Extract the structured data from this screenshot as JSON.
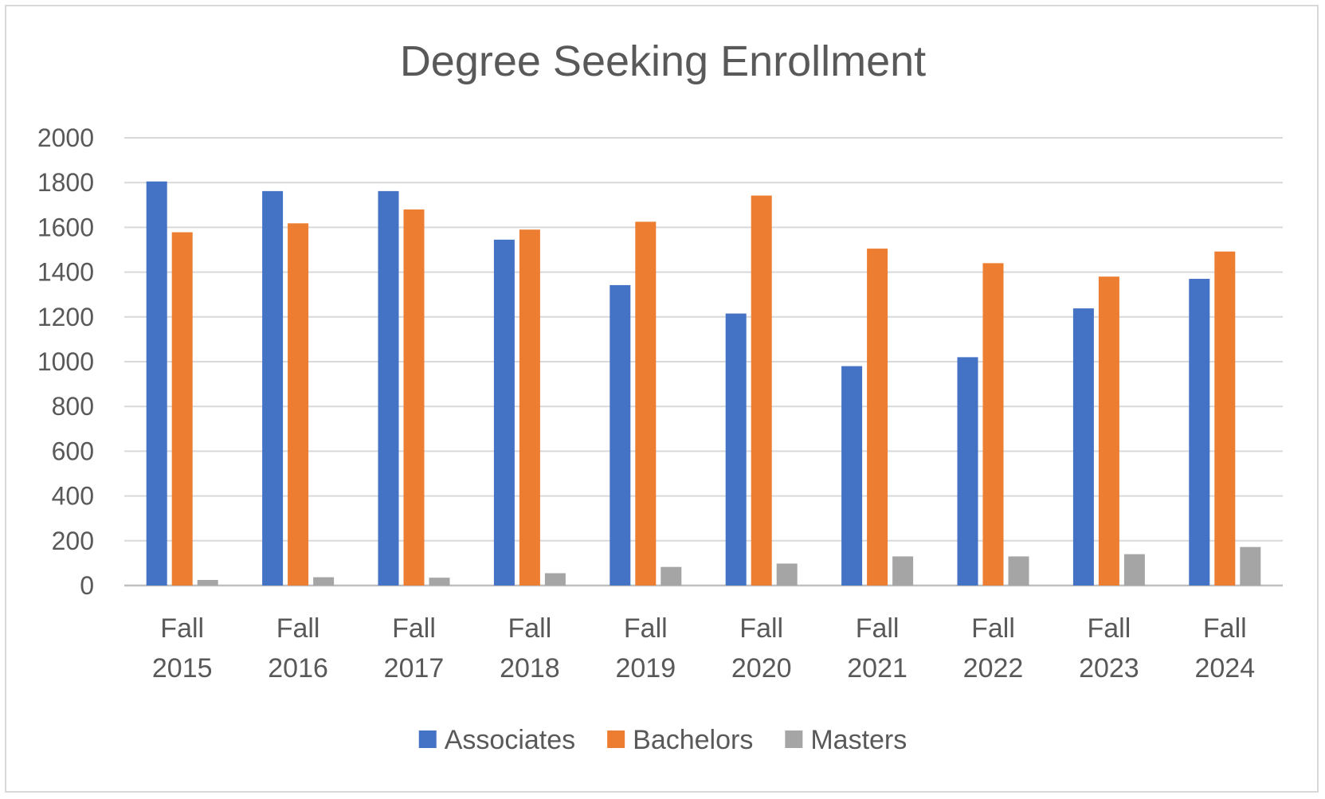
{
  "chart_data": {
    "type": "bar",
    "title": "Degree Seeking Enrollment",
    "xlabel": "",
    "ylabel": "",
    "ylim": [
      0,
      2000
    ],
    "ytick_step": 200,
    "grid": true,
    "legend_position": "bottom",
    "categories": [
      [
        "Fall",
        "2015"
      ],
      [
        "Fall",
        "2016"
      ],
      [
        "Fall",
        "2017"
      ],
      [
        "Fall",
        "2018"
      ],
      [
        "Fall",
        "2019"
      ],
      [
        "Fall",
        "2020"
      ],
      [
        "Fall",
        "2021"
      ],
      [
        "Fall",
        "2022"
      ],
      [
        "Fall",
        "2023"
      ],
      [
        "Fall",
        "2024"
      ]
    ],
    "series": [
      {
        "name": "Associates",
        "color": "#4472c4",
        "values": [
          1805,
          1762,
          1762,
          1545,
          1342,
          1215,
          980,
          1020,
          1238,
          1370
        ]
      },
      {
        "name": "Bachelors",
        "color": "#ed7d31",
        "values": [
          1578,
          1618,
          1680,
          1590,
          1625,
          1742,
          1505,
          1440,
          1380,
          1492
        ]
      },
      {
        "name": "Masters",
        "color": "#a5a5a5",
        "values": [
          25,
          37,
          35,
          55,
          83,
          98,
          130,
          130,
          140,
          172
        ]
      }
    ]
  }
}
